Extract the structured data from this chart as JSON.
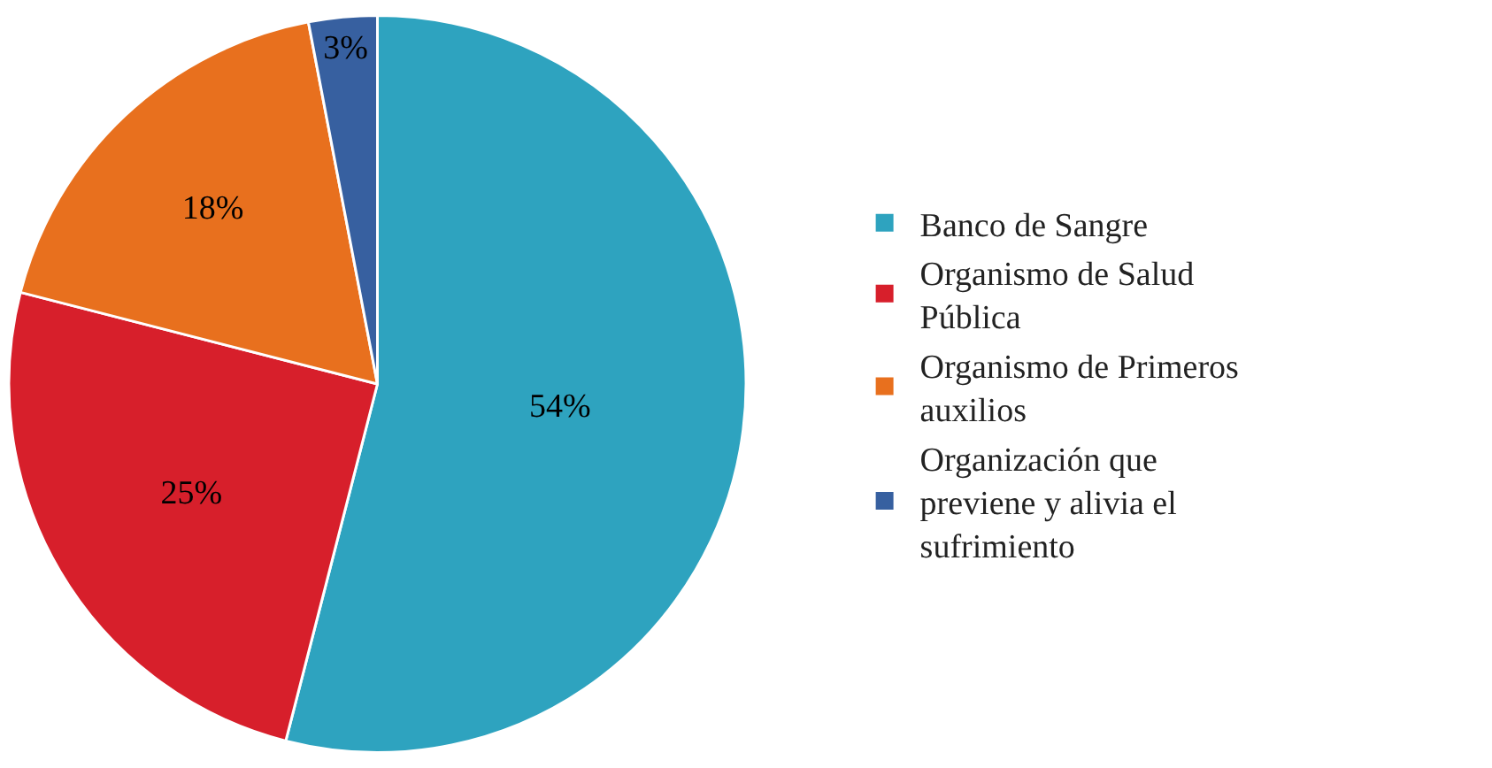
{
  "chart_data": {
    "type": "pie",
    "categories": [
      "Banco de Sangre",
      "Organismo de Salud Pública",
      "Organismo de Primeros auxilios",
      "Organización que previene y alivia el sufrimiento"
    ],
    "values": [
      54,
      25,
      18,
      3
    ],
    "value_labels": [
      "54%",
      "25%",
      "18%",
      "3%"
    ],
    "colors": [
      "#2ea3bf",
      "#d71f2b",
      "#e8701e",
      "#3760a0"
    ],
    "legend": "right"
  }
}
